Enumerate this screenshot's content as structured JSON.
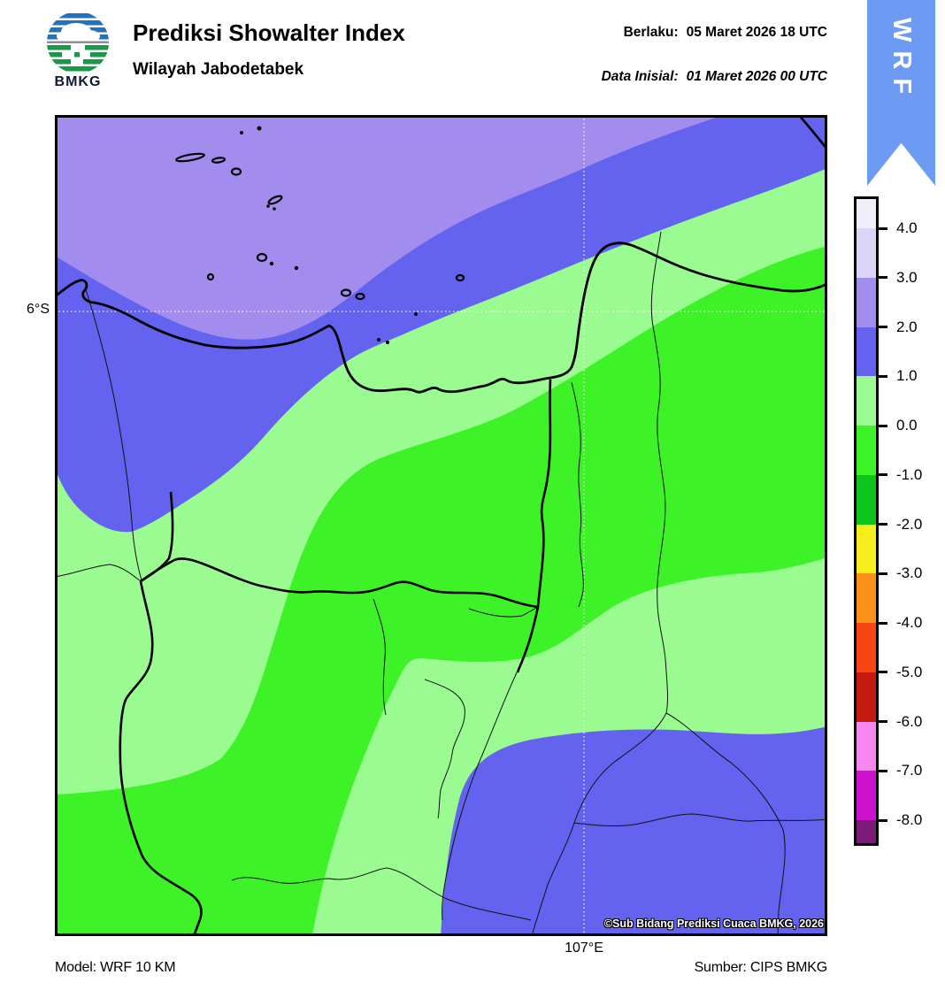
{
  "header": {
    "logo_text": "BMKG",
    "title": "Prediksi Showalter Index",
    "subtitle": "Wilayah Jabodetabek",
    "valid_label": "Berlaku:",
    "valid_value": "05 Maret 2026 18 UTC",
    "init_label": "Data Inisial:",
    "init_value": "01 Maret 2026 00 UTC",
    "ribbon": "WRF"
  },
  "map": {
    "lat_label": "6°S",
    "lon_label": "107°E",
    "copyright": "©Sub Bidang Prediksi Cuaca BMKG, 2026"
  },
  "footer": {
    "model": "Model: WRF 10 KM",
    "source": "Sumber: CIPS BMKG"
  },
  "colors": {
    "lavender": "#a28cee",
    "blue": "#6463f0",
    "light_green": "#99fb90",
    "bright_green": "#3ef228",
    "ribbon_blue": "#6d9af3",
    "logo_blue": "#2273bf",
    "logo_green": "#169a46",
    "logo_gray": "#8a8a8a"
  },
  "chart_data": {
    "type": "heatmap",
    "title": "Prediksi Showalter Index",
    "region": "Wilayah Jabodetabek",
    "valid_time": "05 Maret 2026 18 UTC",
    "init_time": "01 Maret 2026 00 UTC",
    "model": "WRF 10 KM",
    "source": "CIPS BMKG",
    "gridlines": {
      "latitude": "6°S",
      "longitude": "107°E",
      "style": "dotted-white"
    },
    "colorbar": {
      "orientation": "vertical",
      "tick_labels": [
        "4.0",
        "3.0",
        "2.0",
        "1.0",
        "0.0",
        "-1.0",
        "-2.0",
        "-3.0",
        "-4.0",
        "-5.0",
        "-6.0",
        "-7.0",
        "-8.0"
      ],
      "segment_colors_top_to_bottom": [
        "#efeefb",
        "#dbd4f7",
        "#a28cee",
        "#6463f0",
        "#99fb90",
        "#3ef228",
        "#0cc41c",
        "#f8ee1e",
        "#fb9118",
        "#f64512",
        "#c41a10",
        "#f687f0",
        "#cb11cb",
        "#7c1a7a"
      ]
    },
    "map_regions_visible": [
      {
        "value_range": "2 to 3",
        "color": "#a28cee",
        "location": "offshore northwest (Java Sea, upper-left of map)"
      },
      {
        "value_range": "1 to 2",
        "color": "#6463f0",
        "location": "band along the north coast up to top-right corner, plus large lobe in the south-southeast"
      },
      {
        "value_range": "0 to 1",
        "color": "#99fb90",
        "location": "broad band across the middle covering Jakarta coast and inland areas"
      },
      {
        "value_range": "-1 to 0",
        "color": "#3ef228",
        "location": "diagonal band through the center (south Jakarta / Depok / Bogor) and the southwest corner"
      }
    ]
  }
}
